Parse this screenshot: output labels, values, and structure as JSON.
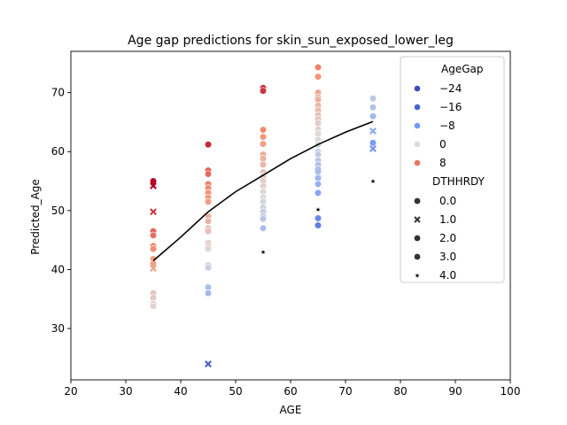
{
  "chart_data": {
    "type": "scatter",
    "title": "Age gap predictions for skin_sun_exposed_lower_leg",
    "xlabel": "AGE",
    "ylabel": "Predicted_Age",
    "xlim": [
      20,
      100
    ],
    "ylim": [
      21.3,
      77
    ],
    "xticks": [
      "20",
      "30",
      "40",
      "50",
      "60",
      "70",
      "80",
      "90",
      "100"
    ],
    "yticks": [
      "30",
      "40",
      "50",
      "60",
      "70"
    ],
    "grid": false,
    "legend_placement": "top-right",
    "hue_legend": {
      "title": "AgeGap",
      "entries": [
        {
          "label": "−24",
          "color": "#3b4cc0"
        },
        {
          "label": "−16",
          "color": "#4961d2"
        },
        {
          "label": "−8",
          "color": "#7597f6"
        },
        {
          "label": "0",
          "color": "#dddcdc"
        },
        {
          "label": "8",
          "color": "#e8765c"
        }
      ]
    },
    "style_legend": {
      "title": "DTHHRDY",
      "entries": [
        {
          "label": "0.0",
          "marker": "circle"
        },
        {
          "label": "1.0",
          "marker": "x"
        },
        {
          "label": "2.0",
          "marker": "circle"
        },
        {
          "label": "3.0",
          "marker": "circle"
        },
        {
          "label": "4.0",
          "marker": "star"
        }
      ]
    },
    "trend_line": {
      "color": "#000000",
      "x": [
        35,
        40,
        45,
        50,
        55,
        60,
        65,
        70,
        75
      ],
      "y": [
        41.5,
        45.5,
        49.8,
        53.2,
        56.0,
        58.8,
        61.2,
        63.3,
        65.1
      ]
    },
    "points": [
      {
        "x": 35,
        "y": 55.0,
        "m": "circle"
      },
      {
        "x": 35,
        "y": 54.2,
        "m": "x"
      },
      {
        "x": 35,
        "y": 49.8,
        "m": "x"
      },
      {
        "x": 35,
        "y": 46.5,
        "m": "circle"
      },
      {
        "x": 35,
        "y": 45.8,
        "m": "circle"
      },
      {
        "x": 35,
        "y": 44.0,
        "m": "circle"
      },
      {
        "x": 35,
        "y": 43.5,
        "m": "circle"
      },
      {
        "x": 35,
        "y": 41.8,
        "m": "circle"
      },
      {
        "x": 35,
        "y": 41.0,
        "m": "circle"
      },
      {
        "x": 35,
        "y": 40.2,
        "m": "x"
      },
      {
        "x": 35,
        "y": 36.0,
        "m": "circle"
      },
      {
        "x": 35,
        "y": 35.2,
        "m": "circle"
      },
      {
        "x": 35,
        "y": 34.2,
        "m": "circle"
      },
      {
        "x": 35,
        "y": 33.8,
        "m": "circle"
      },
      {
        "x": 45,
        "y": 61.2,
        "m": "circle"
      },
      {
        "x": 45,
        "y": 56.8,
        "m": "circle"
      },
      {
        "x": 45,
        "y": 56.2,
        "m": "circle"
      },
      {
        "x": 45,
        "y": 54.5,
        "m": "circle"
      },
      {
        "x": 45,
        "y": 53.8,
        "m": "circle"
      },
      {
        "x": 45,
        "y": 53.0,
        "m": "circle"
      },
      {
        "x": 45,
        "y": 52.2,
        "m": "circle"
      },
      {
        "x": 45,
        "y": 51.5,
        "m": "circle"
      },
      {
        "x": 45,
        "y": 49.0,
        "m": "circle"
      },
      {
        "x": 45,
        "y": 48.2,
        "m": "circle"
      },
      {
        "x": 45,
        "y": 47.0,
        "m": "circle"
      },
      {
        "x": 45,
        "y": 46.5,
        "m": "circle"
      },
      {
        "x": 45,
        "y": 44.5,
        "m": "circle"
      },
      {
        "x": 45,
        "y": 44.0,
        "m": "circle"
      },
      {
        "x": 45,
        "y": 43.5,
        "m": "circle"
      },
      {
        "x": 45,
        "y": 40.7,
        "m": "circle"
      },
      {
        "x": 45,
        "y": 40.3,
        "m": "circle"
      },
      {
        "x": 45,
        "y": 37.0,
        "m": "circle"
      },
      {
        "x": 45,
        "y": 36.0,
        "m": "circle"
      },
      {
        "x": 45,
        "y": 24.0,
        "m": "x"
      },
      {
        "x": 55,
        "y": 70.8,
        "m": "circle"
      },
      {
        "x": 55,
        "y": 70.3,
        "m": "circle"
      },
      {
        "x": 55,
        "y": 63.7,
        "m": "circle"
      },
      {
        "x": 55,
        "y": 62.5,
        "m": "circle"
      },
      {
        "x": 55,
        "y": 61.3,
        "m": "circle"
      },
      {
        "x": 55,
        "y": 59.5,
        "m": "circle"
      },
      {
        "x": 55,
        "y": 58.8,
        "m": "circle"
      },
      {
        "x": 55,
        "y": 57.8,
        "m": "circle"
      },
      {
        "x": 55,
        "y": 56.5,
        "m": "circle"
      },
      {
        "x": 55,
        "y": 55.8,
        "m": "circle"
      },
      {
        "x": 55,
        "y": 55.0,
        "m": "circle"
      },
      {
        "x": 55,
        "y": 54.2,
        "m": "circle"
      },
      {
        "x": 55,
        "y": 53.2,
        "m": "circle"
      },
      {
        "x": 55,
        "y": 52.3,
        "m": "circle"
      },
      {
        "x": 55,
        "y": 51.5,
        "m": "circle"
      },
      {
        "x": 55,
        "y": 50.5,
        "m": "circle"
      },
      {
        "x": 55,
        "y": 49.8,
        "m": "circle"
      },
      {
        "x": 55,
        "y": 49.0,
        "m": "circle"
      },
      {
        "x": 55,
        "y": 48.6,
        "m": "circle"
      },
      {
        "x": 55,
        "y": 47.0,
        "m": "circle"
      },
      {
        "x": 55,
        "y": 43.0,
        "m": "star"
      },
      {
        "x": 65,
        "y": 74.3,
        "m": "circle"
      },
      {
        "x": 65,
        "y": 72.7,
        "m": "circle"
      },
      {
        "x": 65,
        "y": 70.0,
        "m": "circle"
      },
      {
        "x": 65,
        "y": 69.2,
        "m": "circle"
      },
      {
        "x": 65,
        "y": 68.8,
        "m": "circle"
      },
      {
        "x": 65,
        "y": 67.8,
        "m": "circle"
      },
      {
        "x": 65,
        "y": 67.0,
        "m": "circle"
      },
      {
        "x": 65,
        "y": 66.2,
        "m": "circle"
      },
      {
        "x": 65,
        "y": 65.5,
        "m": "circle"
      },
      {
        "x": 65,
        "y": 64.8,
        "m": "circle"
      },
      {
        "x": 65,
        "y": 63.8,
        "m": "circle"
      },
      {
        "x": 65,
        "y": 63.0,
        "m": "circle"
      },
      {
        "x": 65,
        "y": 62.0,
        "m": "circle"
      },
      {
        "x": 65,
        "y": 61.2,
        "m": "circle"
      },
      {
        "x": 65,
        "y": 60.0,
        "m": "circle"
      },
      {
        "x": 65,
        "y": 59.5,
        "m": "circle"
      },
      {
        "x": 65,
        "y": 58.5,
        "m": "circle"
      },
      {
        "x": 65,
        "y": 57.8,
        "m": "circle"
      },
      {
        "x": 65,
        "y": 57.0,
        "m": "circle"
      },
      {
        "x": 65,
        "y": 56.2,
        "m": "x"
      },
      {
        "x": 65,
        "y": 55.5,
        "m": "circle"
      },
      {
        "x": 65,
        "y": 54.5,
        "m": "circle"
      },
      {
        "x": 65,
        "y": 53.0,
        "m": "circle"
      },
      {
        "x": 65,
        "y": 50.2,
        "m": "star"
      },
      {
        "x": 65,
        "y": 48.7,
        "m": "circle"
      },
      {
        "x": 65,
        "y": 47.5,
        "m": "circle"
      },
      {
        "x": 75,
        "y": 69.0,
        "m": "circle"
      },
      {
        "x": 75,
        "y": 67.5,
        "m": "circle"
      },
      {
        "x": 75,
        "y": 66.0,
        "m": "circle"
      },
      {
        "x": 75,
        "y": 63.5,
        "m": "x"
      },
      {
        "x": 75,
        "y": 61.5,
        "m": "circle"
      },
      {
        "x": 75,
        "y": 60.5,
        "m": "x"
      },
      {
        "x": 75,
        "y": 55.0,
        "m": "star"
      }
    ]
  }
}
